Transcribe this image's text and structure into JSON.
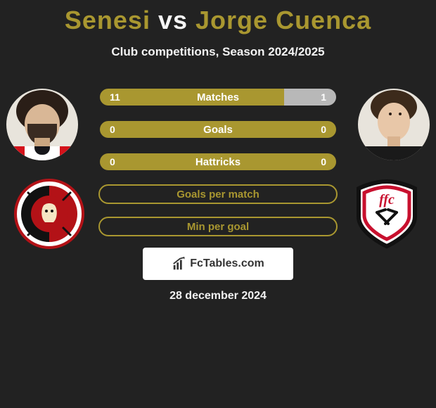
{
  "title": {
    "player1": "Senesi",
    "vs": "vs",
    "player2": "Jorge Cuenca"
  },
  "subtitle": "Club competitions, Season 2024/2025",
  "colors": {
    "background": "#222222",
    "accent": "#a99730",
    "accent_light": "#c7b860",
    "neutral_bar": "#b8b8b8",
    "text": "#ffffff"
  },
  "stats": [
    {
      "label": "Matches",
      "left_value": "11",
      "right_value": "1",
      "left_color": "#a99730",
      "right_color": "#b8b8b8",
      "left_pct": 78,
      "right_pct": 22,
      "filled": true
    },
    {
      "label": "Goals",
      "left_value": "0",
      "right_value": "0",
      "left_color": "#a99730",
      "right_color": "#a99730",
      "left_pct": 50,
      "right_pct": 50,
      "filled": true
    },
    {
      "label": "Hattricks",
      "left_value": "0",
      "right_value": "0",
      "left_color": "#a99730",
      "right_color": "#a99730",
      "left_pct": 50,
      "right_pct": 50,
      "filled": true
    },
    {
      "label": "Goals per match",
      "left_value": "",
      "right_value": "",
      "left_pct": 0,
      "right_pct": 0,
      "filled": false
    },
    {
      "label": "Min per goal",
      "left_value": "",
      "right_value": "",
      "left_pct": 0,
      "right_pct": 0,
      "filled": false
    }
  ],
  "logo_text": "FcTables.com",
  "date": "28 december 2024",
  "players": {
    "left": {
      "name": "Senesi",
      "club": "AFC Bournemouth"
    },
    "right": {
      "name": "Jorge Cuenca",
      "club": "Fulham"
    }
  }
}
